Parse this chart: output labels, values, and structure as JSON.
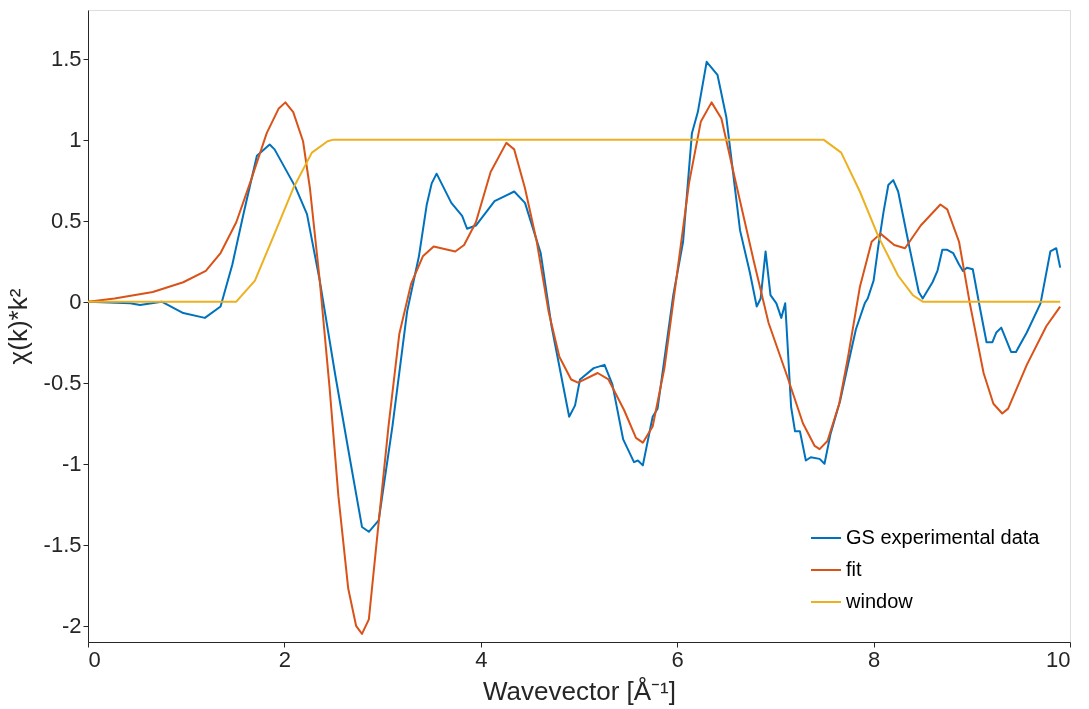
{
  "chart_data": {
    "type": "line",
    "xlabel": "Wavevector [Å⁻¹]",
    "ylabel": "χ(k)*k²",
    "xlim": [
      0,
      10
    ],
    "ylim": [
      -2.1,
      1.8
    ],
    "xticks": [
      0,
      2,
      4,
      6,
      8,
      10
    ],
    "yticks": [
      -2,
      -1.5,
      -1,
      -0.5,
      0,
      0.5,
      1,
      1.5
    ],
    "grid": false,
    "legend": "bottom right",
    "line_style": "solid",
    "marker": "none",
    "series": [
      {
        "name": "GS experimental data",
        "color": "#0072bd",
        "x": [
          0,
          0.43,
          0.53,
          0.75,
          0.97,
          1.19,
          1.35,
          1.47,
          1.59,
          1.72,
          1.85,
          1.9,
          2.11,
          2.23,
          2.36,
          2.52,
          2.67,
          2.79,
          2.86,
          2.96,
          3.1,
          3.25,
          3.37,
          3.45,
          3.5,
          3.55,
          3.7,
          3.81,
          3.86,
          3.95,
          4.14,
          4.34,
          4.45,
          4.61,
          4.72,
          4.9,
          4.96,
          5.01,
          5.15,
          5.26,
          5.34,
          5.45,
          5.56,
          5.6,
          5.65,
          5.75,
          5.8,
          5.96,
          6.06,
          6.15,
          6.21,
          6.3,
          6.41,
          6.5,
          6.64,
          6.74,
          6.81,
          6.85,
          6.9,
          6.95,
          7.01,
          7.06,
          7.1,
          7.16,
          7.2,
          7.25,
          7.31,
          7.36,
          7.45,
          7.5,
          7.56,
          7.66,
          7.75,
          7.82,
          7.91,
          7.94,
          8.0,
          8.05,
          8.1,
          8.15,
          8.2,
          8.25,
          8.36,
          8.46,
          8.5,
          8.6,
          8.65,
          8.7,
          8.75,
          8.81,
          8.87,
          8.91,
          8.95,
          9.01,
          9.08,
          9.15,
          9.21,
          9.25,
          9.3,
          9.4,
          9.45,
          9.56,
          9.7,
          9.8,
          9.86,
          9.9
        ],
        "values": [
          0,
          -0.01,
          -0.02,
          0,
          -0.07,
          -0.1,
          -0.03,
          0.23,
          0.56,
          0.9,
          0.97,
          0.94,
          0.71,
          0.54,
          0.13,
          -0.46,
          -0.98,
          -1.39,
          -1.42,
          -1.35,
          -0.77,
          -0.06,
          0.28,
          0.6,
          0.73,
          0.79,
          0.61,
          0.53,
          0.45,
          0.47,
          0.62,
          0.68,
          0.61,
          0.3,
          -0.15,
          -0.71,
          -0.64,
          -0.48,
          -0.41,
          -0.39,
          -0.51,
          -0.85,
          -0.99,
          -0.98,
          -1.01,
          -0.71,
          -0.66,
          0.04,
          0.37,
          1.04,
          1.17,
          1.48,
          1.4,
          1.14,
          0.44,
          0.18,
          -0.03,
          0.02,
          0.31,
          0.04,
          -0.01,
          -0.1,
          -0.01,
          -0.65,
          -0.8,
          -0.8,
          -0.98,
          -0.96,
          -0.97,
          -1.0,
          -0.82,
          -0.61,
          -0.36,
          -0.17,
          -0.01,
          0.02,
          0.13,
          0.35,
          0.55,
          0.72,
          0.75,
          0.68,
          0.35,
          0.06,
          0.02,
          0.12,
          0.19,
          0.32,
          0.32,
          0.3,
          0.23,
          0.19,
          0.21,
          0.2,
          -0.03,
          -0.25,
          -0.25,
          -0.19,
          -0.16,
          -0.31,
          -0.31,
          -0.19,
          -0.01,
          0.31,
          0.33,
          0.21
        ]
      },
      {
        "name": "fit",
        "color": "#d95319",
        "x": [
          0,
          0.27,
          0.66,
          0.97,
          1.2,
          1.35,
          1.51,
          1.66,
          1.82,
          1.94,
          2.01,
          2.09,
          2.19,
          2.26,
          2.36,
          2.46,
          2.55,
          2.65,
          2.73,
          2.79,
          2.86,
          2.94,
          3.06,
          3.17,
          3.29,
          3.41,
          3.52,
          3.74,
          3.83,
          3.95,
          4.1,
          4.26,
          4.34,
          4.45,
          4.57,
          4.69,
          4.8,
          4.92,
          4.99,
          5.19,
          5.3,
          5.46,
          5.58,
          5.65,
          5.75,
          5.87,
          6.0,
          6.12,
          6.24,
          6.35,
          6.45,
          6.58,
          6.78,
          6.93,
          7.12,
          7.28,
          7.4,
          7.45,
          7.53,
          7.65,
          7.74,
          7.86,
          7.98,
          8.07,
          8.21,
          8.32,
          8.48,
          8.68,
          8.75,
          8.87,
          8.98,
          9.12,
          9.22,
          9.31,
          9.37,
          9.56,
          9.76,
          9.9
        ],
        "values": [
          0,
          0.02,
          0.06,
          0.12,
          0.19,
          0.3,
          0.49,
          0.75,
          1.04,
          1.19,
          1.23,
          1.17,
          0.99,
          0.7,
          0.13,
          -0.53,
          -1.2,
          -1.77,
          -2.0,
          -2.05,
          -1.96,
          -1.48,
          -0.77,
          -0.2,
          0.11,
          0.28,
          0.34,
          0.31,
          0.35,
          0.49,
          0.8,
          0.98,
          0.94,
          0.7,
          0.37,
          -0.06,
          -0.34,
          -0.48,
          -0.5,
          -0.44,
          -0.48,
          -0.67,
          -0.84,
          -0.87,
          -0.77,
          -0.41,
          0.18,
          0.73,
          1.11,
          1.23,
          1.13,
          0.78,
          0.25,
          -0.13,
          -0.46,
          -0.75,
          -0.89,
          -0.91,
          -0.86,
          -0.63,
          -0.34,
          0.09,
          0.37,
          0.42,
          0.35,
          0.33,
          0.47,
          0.6,
          0.57,
          0.37,
          -0.01,
          -0.44,
          -0.63,
          -0.69,
          -0.66,
          -0.39,
          -0.15,
          -0.03
        ]
      },
      {
        "name": "window",
        "color": "#edb120",
        "x": [
          0,
          1.51,
          1.7,
          1.9,
          2.09,
          2.28,
          2.44,
          2.5,
          7.49,
          7.67,
          7.86,
          8.05,
          8.25,
          8.4,
          8.5,
          9.9
        ],
        "values": [
          0,
          0,
          0.13,
          0.42,
          0.7,
          0.92,
          0.99,
          1.0,
          1.0,
          0.92,
          0.68,
          0.4,
          0.16,
          0.04,
          0,
          0
        ]
      }
    ]
  }
}
